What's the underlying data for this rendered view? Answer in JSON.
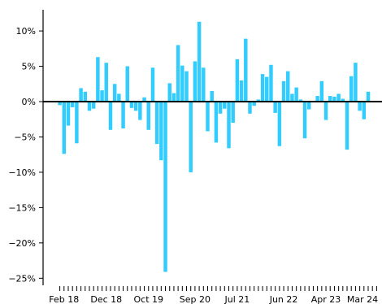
{
  "chart_data": {
    "type": "bar",
    "title": "",
    "xlabel": "",
    "ylabel": "",
    "ylim": [
      -26,
      13
    ],
    "y_ticks": [
      {
        "value": 10,
        "label": "10%"
      },
      {
        "value": 5,
        "label": "5%"
      },
      {
        "value": 0,
        "label": "0%"
      },
      {
        "value": -5,
        "label": "−5%"
      },
      {
        "value": -10,
        "label": "−10%"
      },
      {
        "value": -15,
        "label": "−15%"
      },
      {
        "value": -20,
        "label": "−20%"
      },
      {
        "value": -25,
        "label": "−25%"
      }
    ],
    "x_ticks": [
      {
        "date": "2018-02",
        "label": "Feb 18"
      },
      {
        "date": "2018-12",
        "label": "Dec 18"
      },
      {
        "date": "2019-10",
        "label": "Oct 19"
      },
      {
        "date": "2020-09",
        "label": "Sep 20"
      },
      {
        "date": "2021-07",
        "label": "Jul 21"
      },
      {
        "date": "2022-06",
        "label": "Jun 22"
      },
      {
        "date": "2023-04",
        "label": "Apr 23"
      },
      {
        "date": "2024-03",
        "label": "Mar 24"
      }
    ],
    "grid": false,
    "zero_line": true,
    "bar_color": "#33ccff",
    "series": [
      {
        "x": [
          "2018-01",
          "2018-02",
          "2018-03",
          "2018-04",
          "2018-05",
          "2018-06",
          "2018-07",
          "2018-08",
          "2018-09",
          "2018-10",
          "2018-11",
          "2018-12",
          "2019-01",
          "2019-02",
          "2019-03",
          "2019-04",
          "2019-05",
          "2019-06",
          "2019-07",
          "2019-08",
          "2019-09",
          "2019-10",
          "2019-11",
          "2019-12",
          "2020-01",
          "2020-02",
          "2020-03",
          "2020-04",
          "2020-05",
          "2020-06",
          "2020-07",
          "2020-08",
          "2020-09",
          "2020-10",
          "2020-11",
          "2020-12",
          "2021-01",
          "2021-02",
          "2021-03",
          "2021-04",
          "2021-05",
          "2021-06",
          "2021-07",
          "2021-08",
          "2021-09",
          "2021-10",
          "2021-11",
          "2021-12",
          "2022-01",
          "2022-02",
          "2022-03",
          "2022-04",
          "2022-05",
          "2022-06",
          "2022-07",
          "2022-08",
          "2022-09",
          "2022-10",
          "2022-11",
          "2022-12",
          "2023-01",
          "2023-02",
          "2023-03",
          "2023-04",
          "2023-05",
          "2023-06",
          "2023-07",
          "2023-08",
          "2023-09",
          "2023-10",
          "2023-11",
          "2023-12",
          "2024-01",
          "2024-02",
          "2024-03",
          "2024-04"
        ],
        "values": [
          -0.5,
          -7.4,
          -3.4,
          -0.8,
          -5.9,
          1.9,
          1.4,
          -1.3,
          -1.0,
          6.3,
          1.6,
          5.5,
          -4.0,
          2.5,
          1.1,
          -3.8,
          5.0,
          -0.9,
          -1.3,
          -2.6,
          0.6,
          -4.0,
          4.8,
          -6.0,
          -8.3,
          -24.1,
          2.6,
          1.2,
          8.0,
          5.1,
          4.3,
          -10.0,
          5.7,
          11.3,
          4.8,
          -4.2,
          1.5,
          -5.8,
          -1.7,
          -1.0,
          -6.6,
          -3.0,
          6.0,
          3.0,
          8.9,
          -1.7,
          -0.6,
          0.3,
          3.9,
          3.5,
          5.2,
          -1.6,
          -6.3,
          2.9,
          4.3,
          1.1,
          2.0,
          0.3,
          -5.2,
          -1.1,
          0.0,
          0.8,
          2.9,
          -2.6,
          0.8,
          0.7,
          1.1,
          0.4,
          -6.8,
          3.6,
          5.5,
          -1.3,
          -2.5,
          1.4,
          0.0,
          0.0
        ]
      }
    ]
  }
}
